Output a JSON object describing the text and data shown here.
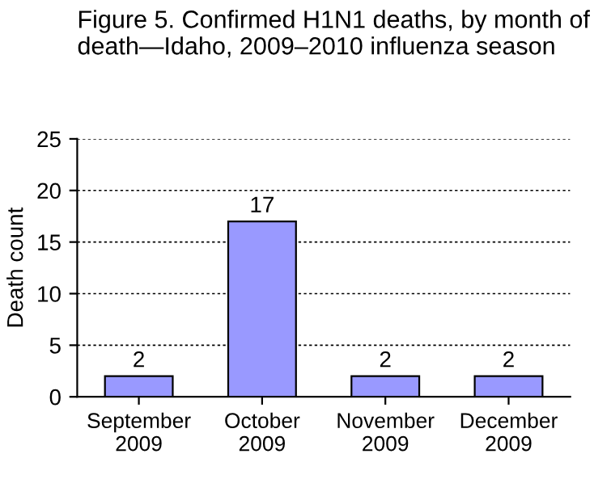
{
  "chart_data": {
    "type": "bar",
    "title": "Figure 5. Confirmed H1N1 deaths, by month of death—Idaho, 2009–2010 influenza season",
    "ylabel": "Death count",
    "categories": [
      "September\n2009",
      "October\n2009",
      "November\n2009",
      "December\n2009"
    ],
    "values": [
      2,
      17,
      2,
      2
    ],
    "color": "#9999ff",
    "ylim": [
      0,
      25
    ],
    "yticks": [
      0,
      5,
      10,
      15,
      20,
      25
    ],
    "grid": "y",
    "data_labels": true
  }
}
